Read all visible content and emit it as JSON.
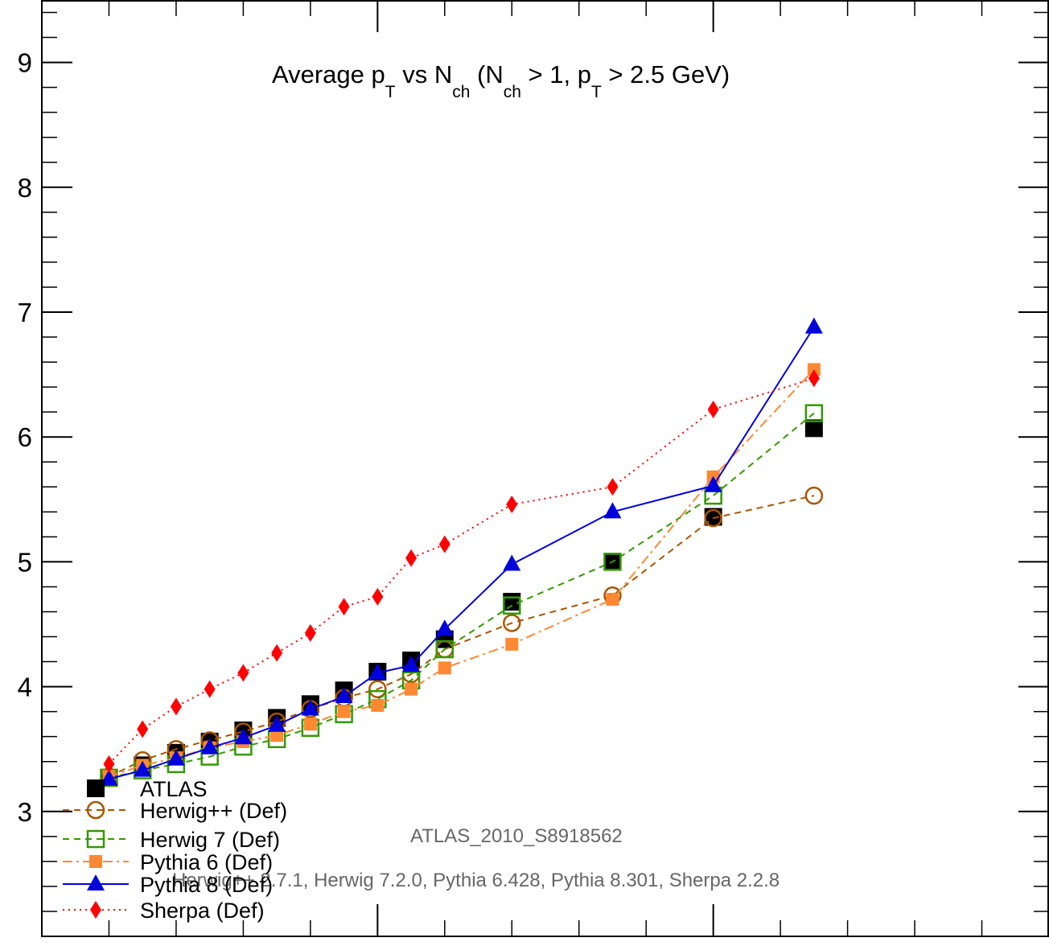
{
  "chart_data": {
    "type": "line",
    "title_parts": {
      "a": "Average p",
      "b": "T",
      "c": " vs N",
      "d": "ch",
      "e": " (N",
      "f": "ch",
      "g": " > 1, p",
      "h": "T",
      "i": " > 2.5 GeV)"
    },
    "annotations": {
      "analysis": "ATLAS_2010_S8918562",
      "versions": "Herwig++ 2.7.1, Herwig 7.2.0, Pythia 6.428, Pythia 8.301, Sherpa 2.2.8"
    },
    "y_ticks": [
      "3",
      "4",
      "5",
      "6",
      "7",
      "8",
      "9"
    ],
    "y_tick_values": [
      3,
      4,
      5,
      6,
      7,
      8,
      9
    ],
    "ylim": [
      2,
      9.5
    ],
    "grid": false,
    "legend_position": "bottom-left",
    "x": [
      2,
      3,
      4,
      5,
      6,
      7,
      8,
      9,
      10,
      11,
      12,
      14,
      17,
      20,
      23,
      27.5
    ],
    "series": [
      {
        "name": "ATLAS",
        "style": "marker-only",
        "marker": "filled-square",
        "color": "#000000",
        "values": [
          3.27,
          3.37,
          3.47,
          3.56,
          3.65,
          3.75,
          3.86,
          3.97,
          4.12,
          4.21,
          4.38,
          4.68,
          5.0,
          5.36,
          6.07,
          null
        ]
      },
      {
        "name": "Herwig++ (Def)",
        "style": "dashed",
        "marker": "open-circle",
        "color": "#aa5500",
        "values": [
          3.28,
          3.41,
          3.5,
          3.57,
          3.64,
          3.72,
          3.82,
          3.91,
          3.98,
          4.1,
          4.3,
          4.51,
          4.73,
          5.35,
          5.53,
          null
        ]
      },
      {
        "name": "Herwig 7 (Def)",
        "style": "dashed",
        "marker": "open-square",
        "color": "#339900",
        "values": [
          3.27,
          3.33,
          3.38,
          3.44,
          3.52,
          3.58,
          3.67,
          3.78,
          3.9,
          4.05,
          4.3,
          4.65,
          5.0,
          5.53,
          6.19,
          null
        ]
      },
      {
        "name": "Pythia 6 (Def)",
        "style": "dashdot",
        "marker": "filled-square-small",
        "color": "#ff8833",
        "values": [
          3.28,
          3.37,
          3.43,
          3.51,
          3.56,
          3.61,
          3.7,
          3.8,
          3.85,
          3.98,
          4.15,
          4.34,
          4.7,
          5.68,
          6.54,
          null
        ]
      },
      {
        "name": "Pythia 8 (Def)",
        "style": "solid",
        "marker": "filled-triangle",
        "color": "#0000dd",
        "values": [
          3.26,
          3.33,
          3.42,
          3.51,
          3.59,
          3.69,
          3.82,
          3.92,
          4.11,
          4.17,
          4.46,
          4.98,
          5.4,
          5.61,
          6.88,
          null
        ]
      },
      {
        "name": "Sherpa (Def)",
        "style": "dotted",
        "marker": "filled-diamond",
        "color": "#ff0000",
        "values": [
          3.38,
          3.66,
          3.84,
          3.98,
          4.11,
          4.27,
          4.43,
          4.64,
          4.72,
          5.03,
          5.14,
          5.46,
          5.6,
          6.22,
          6.47,
          null
        ]
      }
    ]
  }
}
